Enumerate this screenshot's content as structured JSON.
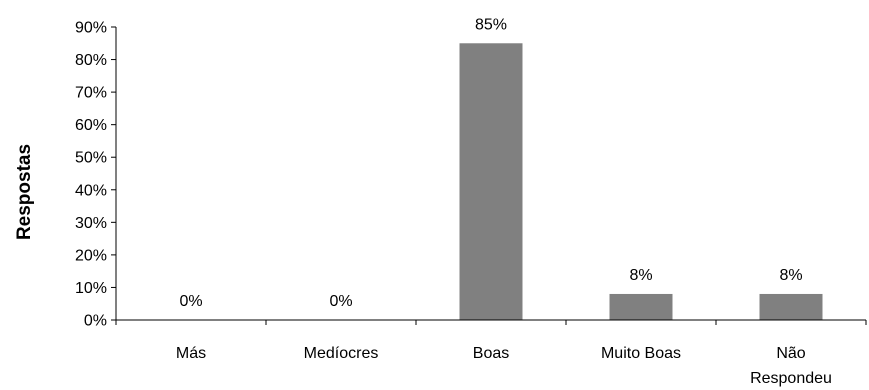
{
  "chart_data": {
    "type": "bar",
    "title": "",
    "xlabel": "",
    "ylabel": "Respostas",
    "categories": [
      "Más",
      "Medíocres",
      "Boas",
      "Muito Boas",
      "Não Respondeu"
    ],
    "category_lines": [
      [
        "Más"
      ],
      [
        "Medíocres"
      ],
      [
        "Boas"
      ],
      [
        "Muito Boas"
      ],
      [
        "Não",
        "Respondeu"
      ]
    ],
    "values": [
      0,
      0,
      85,
      8,
      8
    ],
    "value_labels": [
      "0%",
      "0%",
      "85%",
      "8%",
      "8%"
    ],
    "ylim": [
      0,
      90
    ],
    "yticks": [
      0,
      10,
      20,
      30,
      40,
      50,
      60,
      70,
      80,
      90
    ],
    "ytick_labels": [
      "0%",
      "10%",
      "20%",
      "30%",
      "40%",
      "50%",
      "60%",
      "70%",
      "80%",
      "90%"
    ],
    "grid": false,
    "legend": "none",
    "bar_color": "#808080",
    "axis_color": "#000000"
  }
}
